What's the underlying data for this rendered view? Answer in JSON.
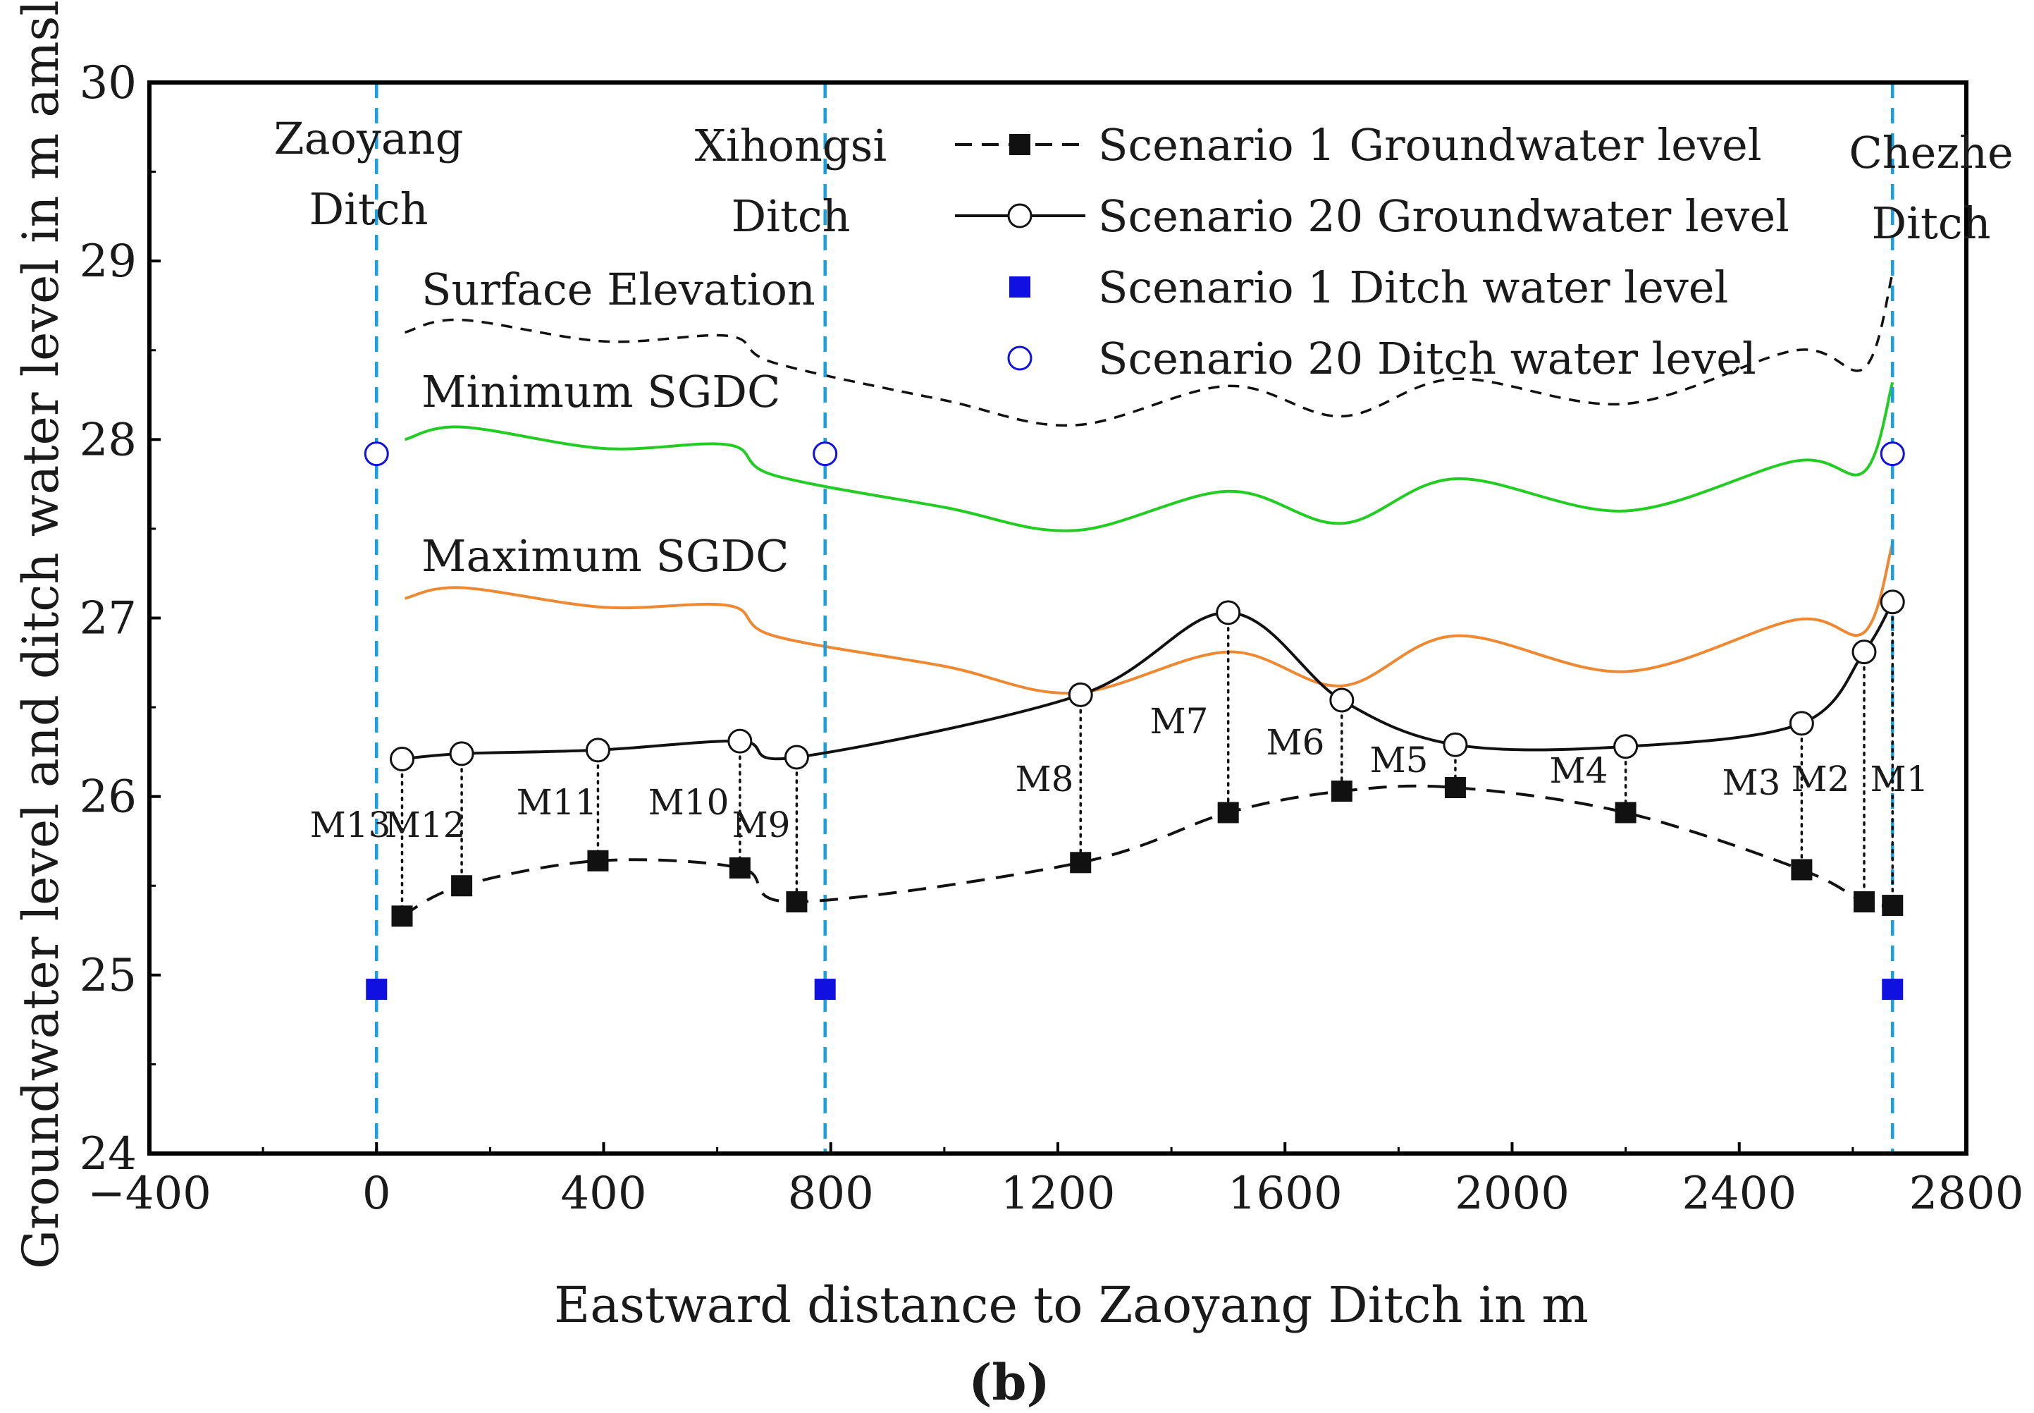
{
  "panel_label": "(b)",
  "chart_data": {
    "type": "line",
    "xlabel": "Eastward distance to Zaoyang Ditch in m",
    "ylabel": "Groundwater level and ditch water level in m amsl",
    "xlim": [
      -400,
      2800
    ],
    "ylim": [
      24,
      30
    ],
    "x_ticks": [
      -400,
      0,
      400,
      800,
      1200,
      1600,
      2000,
      2400,
      2800
    ],
    "y_ticks": [
      24,
      25,
      26,
      27,
      28,
      29,
      30
    ],
    "x_tick_labels": [
      "−400",
      "0",
      "400",
      "800",
      "1200",
      "1600",
      "2000",
      "2400",
      "2800"
    ],
    "y_tick_labels": [
      "24",
      "25",
      "26",
      "27",
      "28",
      "29",
      "30"
    ],
    "grid": false,
    "legend_position": "top-right",
    "ditches": [
      {
        "x": 0,
        "label_line1": "Zaoyang",
        "label_line2": "Ditch"
      },
      {
        "x": 790,
        "label_line1": "Xihongsi",
        "label_line2": "Ditch"
      },
      {
        "x": 2670,
        "label_line1": "Chezhe",
        "label_line2": "Ditch"
      }
    ],
    "curve_labels": {
      "surface": "Surface Elevation",
      "min_sgdc": "Minimum SGDC",
      "max_sgdc": "Maximum SGDC"
    },
    "series": [
      {
        "name": "Scenario 1 Groundwater level",
        "style": "dashed-square",
        "color": "#111111",
        "points": [
          [
            45,
            25.33
          ],
          [
            150,
            25.5
          ],
          [
            390,
            25.64
          ],
          [
            640,
            25.6
          ],
          [
            740,
            25.41
          ],
          [
            1240,
            25.63
          ],
          [
            1500,
            25.91
          ],
          [
            1700,
            26.03
          ],
          [
            1900,
            26.05
          ],
          [
            2200,
            25.91
          ],
          [
            2510,
            25.59
          ],
          [
            2620,
            25.41
          ],
          [
            2670,
            25.39
          ]
        ]
      },
      {
        "name": "Scenario 20 Groundwater level",
        "style": "solid-circle",
        "color": "#111111",
        "points": [
          [
            45,
            26.21
          ],
          [
            150,
            26.24
          ],
          [
            390,
            26.26
          ],
          [
            640,
            26.31
          ],
          [
            740,
            26.22
          ],
          [
            1240,
            26.57
          ],
          [
            1500,
            27.03
          ],
          [
            1700,
            26.54
          ],
          [
            1900,
            26.29
          ],
          [
            2200,
            26.28
          ],
          [
            2510,
            26.41
          ],
          [
            2620,
            26.81
          ],
          [
            2670,
            27.09
          ]
        ]
      },
      {
        "name": "Scenario 1 Ditch water level",
        "style": "square-marker",
        "color": "#1010e0",
        "points": [
          [
            0,
            24.92
          ],
          [
            790,
            24.92
          ],
          [
            2670,
            24.92
          ]
        ]
      },
      {
        "name": "Scenario 20 Ditch water level",
        "style": "open-circle-marker",
        "color": "#1010e0",
        "points": [
          [
            0,
            27.92
          ],
          [
            790,
            27.92
          ],
          [
            2670,
            27.92
          ]
        ]
      }
    ],
    "surface_elevation": {
      "color": "#111111",
      "points": [
        [
          50,
          28.6
        ],
        [
          150,
          28.67
        ],
        [
          400,
          28.55
        ],
        [
          620,
          28.58
        ],
        [
          700,
          28.43
        ],
        [
          1000,
          28.22
        ],
        [
          1230,
          28.08
        ],
        [
          1500,
          28.3
        ],
        [
          1700,
          28.13
        ],
        [
          1900,
          28.34
        ],
        [
          2200,
          28.2
        ],
        [
          2500,
          28.5
        ],
        [
          2620,
          28.4
        ],
        [
          2670,
          28.93
        ]
      ]
    },
    "minimum_sgdc": {
      "color": "#22cc22",
      "points": [
        [
          50,
          28.0
        ],
        [
          150,
          28.07
        ],
        [
          400,
          27.95
        ],
        [
          620,
          27.97
        ],
        [
          700,
          27.8
        ],
        [
          1000,
          27.62
        ],
        [
          1230,
          27.49
        ],
        [
          1500,
          27.71
        ],
        [
          1700,
          27.53
        ],
        [
          1900,
          27.78
        ],
        [
          2200,
          27.6
        ],
        [
          2500,
          27.88
        ],
        [
          2620,
          27.82
        ],
        [
          2670,
          28.32
        ]
      ]
    },
    "maximum_sgdc": {
      "color": "#ee8833",
      "points": [
        [
          50,
          27.11
        ],
        [
          150,
          27.17
        ],
        [
          400,
          27.06
        ],
        [
          620,
          27.07
        ],
        [
          700,
          26.9
        ],
        [
          1000,
          26.73
        ],
        [
          1230,
          26.58
        ],
        [
          1500,
          26.81
        ],
        [
          1700,
          26.62
        ],
        [
          1900,
          26.9
        ],
        [
          2200,
          26.7
        ],
        [
          2500,
          26.99
        ],
        [
          2620,
          26.92
        ],
        [
          2670,
          27.42
        ]
      ]
    },
    "wells": [
      {
        "name": "M13",
        "x": 45
      },
      {
        "name": "M12",
        "x": 150
      },
      {
        "name": "M11",
        "x": 390
      },
      {
        "name": "M10",
        "x": 640
      },
      {
        "name": "M9",
        "x": 740
      },
      {
        "name": "M8",
        "x": 1240
      },
      {
        "name": "M7",
        "x": 1500
      },
      {
        "name": "M6",
        "x": 1700
      },
      {
        "name": "M5",
        "x": 1900
      },
      {
        "name": "M4",
        "x": 2200
      },
      {
        "name": "M3",
        "x": 2510
      },
      {
        "name": "M2",
        "x": 2620
      },
      {
        "name": "M1",
        "x": 2670
      }
    ]
  }
}
